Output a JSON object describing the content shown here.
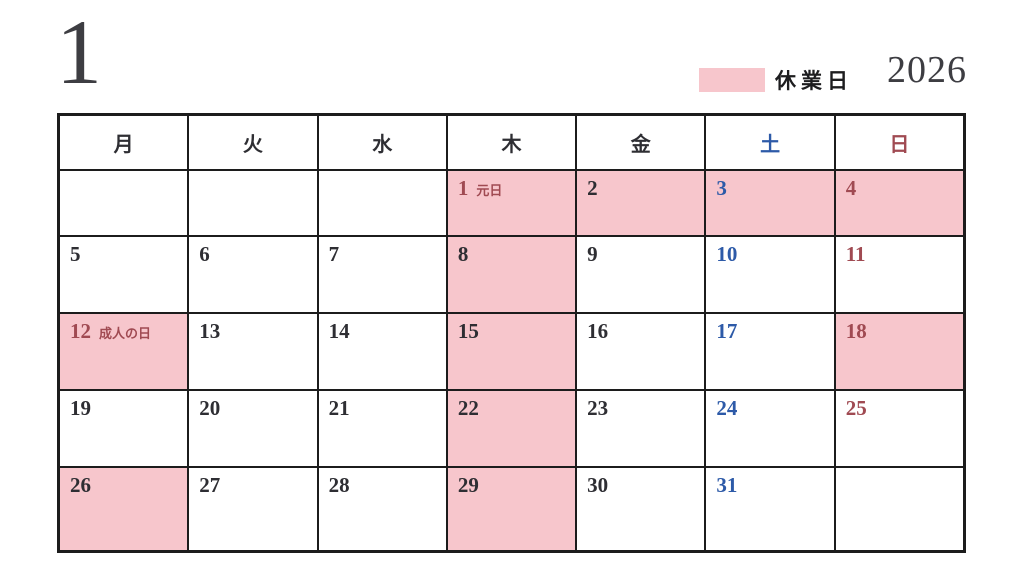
{
  "page": {
    "month_number": "1",
    "year": "2026",
    "legend_label": "休業日"
  },
  "colors": {
    "closed_day_bg": "#f7c6cc",
    "saturday_text": "#2d5aa8",
    "sunday_holiday_text": "#a04a52",
    "default_text": "#2e2e33",
    "grid_line": "#1c1c1c"
  },
  "calendar": {
    "weekday_headers": [
      {
        "label": "月",
        "color": "black"
      },
      {
        "label": "火",
        "color": "black"
      },
      {
        "label": "水",
        "color": "black"
      },
      {
        "label": "木",
        "color": "black"
      },
      {
        "label": "金",
        "color": "black"
      },
      {
        "label": "土",
        "color": "blue"
      },
      {
        "label": "日",
        "color": "red"
      }
    ],
    "weeks": [
      [
        {
          "day": ""
        },
        {
          "day": ""
        },
        {
          "day": ""
        },
        {
          "day": "1",
          "note": "元日",
          "closed": true,
          "color": "red"
        },
        {
          "day": "2",
          "closed": true
        },
        {
          "day": "3",
          "closed": true,
          "color": "blue"
        },
        {
          "day": "4",
          "closed": true,
          "color": "red"
        }
      ],
      [
        {
          "day": "5"
        },
        {
          "day": "6"
        },
        {
          "day": "7"
        },
        {
          "day": "8",
          "closed": true
        },
        {
          "day": "9"
        },
        {
          "day": "10",
          "color": "blue"
        },
        {
          "day": "11",
          "color": "red"
        }
      ],
      [
        {
          "day": "12",
          "note": "成人の日",
          "closed": true,
          "color": "red"
        },
        {
          "day": "13"
        },
        {
          "day": "14"
        },
        {
          "day": "15",
          "closed": true
        },
        {
          "day": "16"
        },
        {
          "day": "17",
          "color": "blue"
        },
        {
          "day": "18",
          "closed": true,
          "color": "red"
        }
      ],
      [
        {
          "day": "19"
        },
        {
          "day": "20"
        },
        {
          "day": "21"
        },
        {
          "day": "22",
          "closed": true
        },
        {
          "day": "23"
        },
        {
          "day": "24",
          "color": "blue"
        },
        {
          "day": "25",
          "color": "red"
        }
      ],
      [
        {
          "day": "26",
          "closed": true
        },
        {
          "day": "27"
        },
        {
          "day": "28"
        },
        {
          "day": "29",
          "closed": true
        },
        {
          "day": "30"
        },
        {
          "day": "31",
          "color": "blue"
        },
        {
          "day": ""
        }
      ]
    ]
  }
}
